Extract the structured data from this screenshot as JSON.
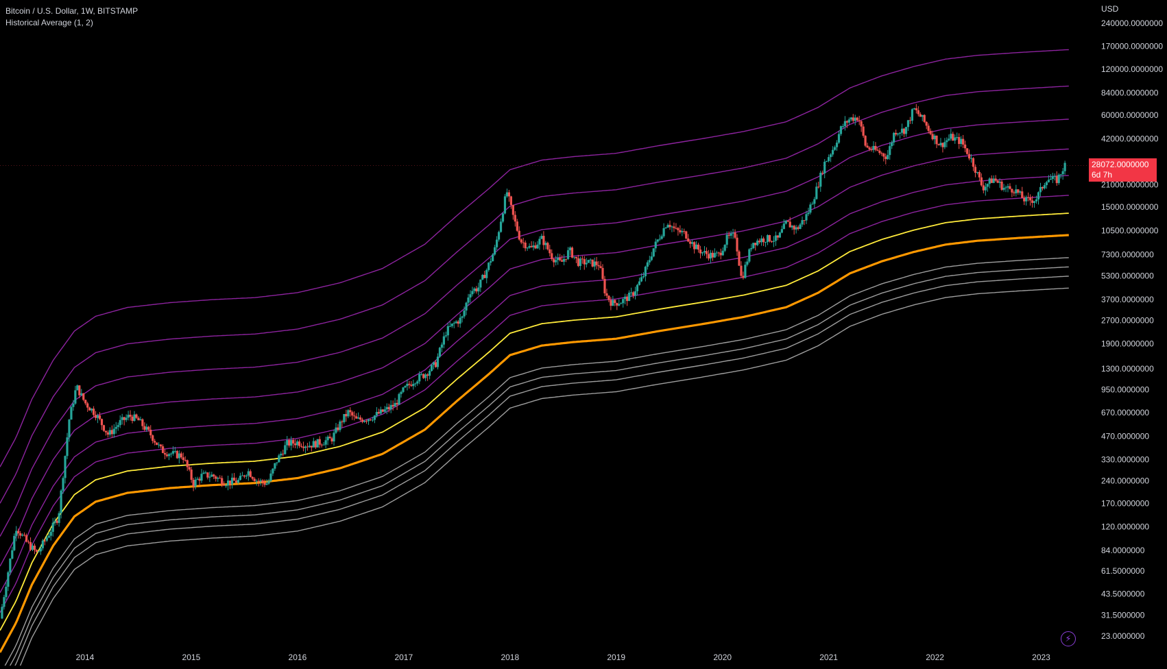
{
  "header": {
    "title": "Bitcoin / U.S. Dollar, 1W, BITSTAMP",
    "indicator": "Historical Average (1, 2)"
  },
  "price_axis": {
    "currency": "USD",
    "labels": [
      "240000.0000000",
      "170000.0000000",
      "120000.0000000",
      "84000.0000000",
      "60000.0000000",
      "42000.0000000",
      "21000.0000000",
      "15000.0000000",
      "10500.0000000",
      "7300.0000000",
      "5300.0000000",
      "3700.0000000",
      "2700.0000000",
      "1900.0000000",
      "1300.0000000",
      "950.0000000",
      "670.0000000",
      "470.0000000",
      "330.0000000",
      "240.0000000",
      "170.0000000",
      "120.0000000",
      "84.0000000",
      "61.5000000",
      "43.5000000",
      "31.5000000",
      "23.0000000"
    ]
  },
  "last_price": {
    "value": "28072.0000000",
    "countdown": "6d 7h",
    "color": "#f23645"
  },
  "time_axis": {
    "labels": [
      "2014",
      "2015",
      "2016",
      "2017",
      "2018",
      "2019",
      "2020",
      "2021",
      "2022",
      "2023"
    ]
  },
  "colors": {
    "up": "#26a69a",
    "down": "#ef5350",
    "band_upper": "#9c27b0",
    "band_mean": "#ffeb3b",
    "band_key": "#ff9800",
    "band_lower": "#9e9e9e",
    "accent": "#8b3fd9"
  },
  "icons": {
    "bottom_right": "flash-icon"
  },
  "chart_data": {
    "type": "candlestick",
    "title": "Bitcoin / U.S. Dollar, 1W, BITSTAMP",
    "y_scale": "log",
    "ylim": [
      20,
      300000
    ],
    "xlim": [
      2013.2,
      2023.5
    ],
    "legend": "top-left",
    "grid": false,
    "price_path": [
      [
        2013.2,
        30
      ],
      [
        2013.35,
        120
      ],
      [
        2013.45,
        95
      ],
      [
        2013.55,
        80
      ],
      [
        2013.65,
        105
      ],
      [
        2013.75,
        140
      ],
      [
        2013.85,
        600
      ],
      [
        2013.92,
        1000
      ],
      [
        2014.0,
        780
      ],
      [
        2014.1,
        660
      ],
      [
        2014.22,
        480
      ],
      [
        2014.33,
        580
      ],
      [
        2014.42,
        640
      ],
      [
        2014.5,
        600
      ],
      [
        2014.62,
        480
      ],
      [
        2014.72,
        380
      ],
      [
        2014.82,
        360
      ],
      [
        2014.92,
        350
      ],
      [
        2015.02,
        230
      ],
      [
        2015.1,
        260
      ],
      [
        2015.2,
        260
      ],
      [
        2015.32,
        235
      ],
      [
        2015.45,
        240
      ],
      [
        2015.53,
        280
      ],
      [
        2015.62,
        240
      ],
      [
        2015.72,
        230
      ],
      [
        2015.8,
        320
      ],
      [
        2015.9,
        420
      ],
      [
        2016.0,
        430
      ],
      [
        2016.1,
        410
      ],
      [
        2016.22,
        430
      ],
      [
        2016.32,
        450
      ],
      [
        2016.42,
        600
      ],
      [
        2016.48,
        680
      ],
      [
        2016.55,
        600
      ],
      [
        2016.68,
        620
      ],
      [
        2016.8,
        680
      ],
      [
        2016.92,
        760
      ],
      [
        2017.0,
        950
      ],
      [
        2017.1,
        1100
      ],
      [
        2017.2,
        1200
      ],
      [
        2017.3,
        1400
      ],
      [
        2017.4,
        2300
      ],
      [
        2017.48,
        2600
      ],
      [
        2017.55,
        2800
      ],
      [
        2017.62,
        4200
      ],
      [
        2017.7,
        4400
      ],
      [
        2017.78,
        5800
      ],
      [
        2017.86,
        8000
      ],
      [
        2017.93,
        14000
      ],
      [
        2017.97,
        19000
      ],
      [
        2018.03,
        13000
      ],
      [
        2018.1,
        9000
      ],
      [
        2018.2,
        8000
      ],
      [
        2018.3,
        9300
      ],
      [
        2018.4,
        7000
      ],
      [
        2018.48,
        6400
      ],
      [
        2018.56,
        7800
      ],
      [
        2018.64,
        6500
      ],
      [
        2018.72,
        6500
      ],
      [
        2018.84,
        6300
      ],
      [
        2018.9,
        4000
      ],
      [
        2018.96,
        3500
      ],
      [
        2019.05,
        3600
      ],
      [
        2019.15,
        4000
      ],
      [
        2019.25,
        5200
      ],
      [
        2019.35,
        8000
      ],
      [
        2019.48,
        12000
      ],
      [
        2019.56,
        10500
      ],
      [
        2019.65,
        10000
      ],
      [
        2019.74,
        8200
      ],
      [
        2019.82,
        7500
      ],
      [
        2019.9,
        7200
      ],
      [
        2019.97,
        7300
      ],
      [
        2020.04,
        9300
      ],
      [
        2020.12,
        9800
      ],
      [
        2020.18,
        5000
      ],
      [
        2020.28,
        8800
      ],
      [
        2020.4,
        9300
      ],
      [
        2020.52,
        9200
      ],
      [
        2020.6,
        11800
      ],
      [
        2020.7,
        10700
      ],
      [
        2020.8,
        13500
      ],
      [
        2020.88,
        19000
      ],
      [
        2020.96,
        29000
      ],
      [
        2021.05,
        37000
      ],
      [
        2021.12,
        50000
      ],
      [
        2021.2,
        57000
      ],
      [
        2021.28,
        58000
      ],
      [
        2021.35,
        37000
      ],
      [
        2021.45,
        35000
      ],
      [
        2021.55,
        32000
      ],
      [
        2021.62,
        47000
      ],
      [
        2021.72,
        48000
      ],
      [
        2021.8,
        66000
      ],
      [
        2021.88,
        57000
      ],
      [
        2021.96,
        46000
      ],
      [
        2022.05,
        38000
      ],
      [
        2022.15,
        43000
      ],
      [
        2022.25,
        40000
      ],
      [
        2022.35,
        30000
      ],
      [
        2022.45,
        20000
      ],
      [
        2022.55,
        23000
      ],
      [
        2022.65,
        20000
      ],
      [
        2022.75,
        19500
      ],
      [
        2022.85,
        16500
      ],
      [
        2022.95,
        16800
      ],
      [
        2023.05,
        23000
      ],
      [
        2023.15,
        22500
      ],
      [
        2023.22,
        28072
      ]
    ],
    "bands": [
      {
        "color": "#9c27b0",
        "offset": 2.8,
        "width": 1.4
      },
      {
        "color": "#9c27b0",
        "offset": 2.25,
        "width": 1.4
      },
      {
        "color": "#9c27b0",
        "offset": 1.75,
        "width": 1.4
      },
      {
        "color": "#9c27b0",
        "offset": 1.3,
        "width": 1.4
      },
      {
        "color": "#9c27b0",
        "offset": 0.9,
        "width": 1.4
      },
      {
        "color": "#9c27b0",
        "offset": 0.6,
        "width": 1.4
      },
      {
        "color": "#ffeb3b",
        "offset": 0.33,
        "width": 1.8
      },
      {
        "color": "#ff9800",
        "offset": 0.0,
        "width": 3.2
      },
      {
        "color": "#9e9e9e",
        "offset": -0.34,
        "width": 1.4
      },
      {
        "color": "#9e9e9e",
        "offset": -0.48,
        "width": 1.4
      },
      {
        "color": "#9e9e9e",
        "offset": -0.62,
        "width": 1.4
      },
      {
        "color": "#9e9e9e",
        "offset": -0.8,
        "width": 1.4
      }
    ],
    "baseline": [
      [
        2013.2,
        18
      ],
      [
        2013.35,
        28
      ],
      [
        2013.5,
        50
      ],
      [
        2013.7,
        90
      ],
      [
        2013.9,
        140
      ],
      [
        2014.1,
        175
      ],
      [
        2014.4,
        200
      ],
      [
        2014.8,
        215
      ],
      [
        2015.2,
        225
      ],
      [
        2015.6,
        232
      ],
      [
        2016.0,
        250
      ],
      [
        2016.4,
        290
      ],
      [
        2016.8,
        360
      ],
      [
        2017.2,
        520
      ],
      [
        2017.5,
        800
      ],
      [
        2017.8,
        1200
      ],
      [
        2018.0,
        1600
      ],
      [
        2018.3,
        1850
      ],
      [
        2018.6,
        1950
      ],
      [
        2019.0,
        2050
      ],
      [
        2019.4,
        2300
      ],
      [
        2019.8,
        2550
      ],
      [
        2020.2,
        2850
      ],
      [
        2020.6,
        3300
      ],
      [
        2020.9,
        4100
      ],
      [
        2021.2,
        5500
      ],
      [
        2021.5,
        6600
      ],
      [
        2021.8,
        7600
      ],
      [
        2022.1,
        8500
      ],
      [
        2022.4,
        9000
      ],
      [
        2022.8,
        9400
      ],
      [
        2023.25,
        9800
      ]
    ]
  }
}
